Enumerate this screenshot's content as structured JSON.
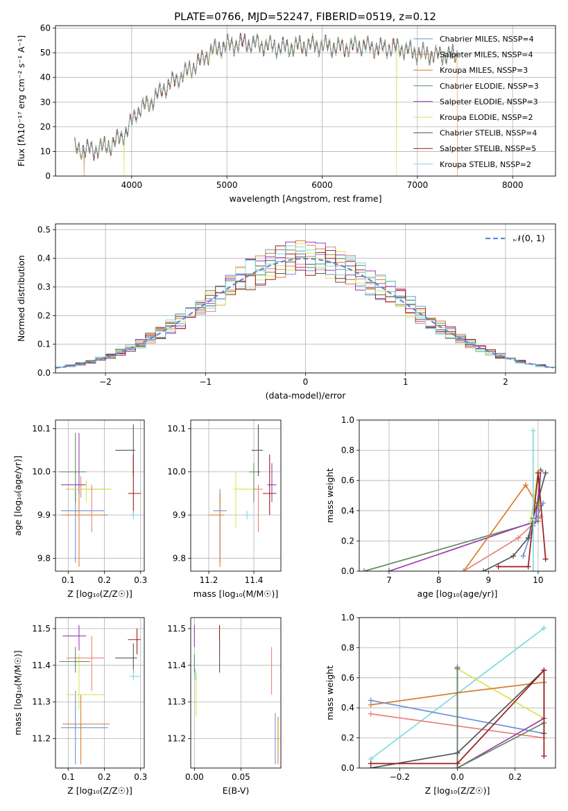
{
  "title": "PLATE=0766, MJD=52247, FIBERID=0519, z=0.12",
  "series_styles": [
    {
      "color": "#6a90d8"
    },
    {
      "color": "#e8827a"
    },
    {
      "color": "#d97d2b"
    },
    {
      "color": "#5f8a5a"
    },
    {
      "color": "#9a3bb0"
    },
    {
      "color": "#d6e650"
    },
    {
      "color": "#555555"
    },
    {
      "color": "#a01a1a"
    },
    {
      "color": "#7fd8dc"
    }
  ],
  "chart_data": [
    {
      "id": "spectrum",
      "type": "line",
      "xlabel": "wavelength [Angstrom, rest frame]",
      "ylabel": "Flux [fλ10⁻¹⁷ erg cm⁻² s⁻¹ A⁻¹]",
      "xlim": [
        3200,
        8450
      ],
      "ylim": [
        0,
        61
      ],
      "xticks": [
        "4000",
        "5000",
        "6000",
        "7000",
        "8000"
      ],
      "yticks": [
        "0",
        "10",
        "20",
        "30",
        "40",
        "50",
        "60"
      ],
      "legend_position": "top-right",
      "legend": [
        "Chabrier MILES, NSSP=4",
        "Salpeter MILES, NSSP=4",
        "Kroupa MILES, NSSP=3",
        "Chabrier ELODIE, NSSP=3",
        "Salpeter ELODIE, NSSP=3",
        "Kroupa ELODIE, NSSP=2",
        "Chabrier STELIB, NSSP=4",
        "Salpeter STELIB, NSSP=5",
        "Kroupa STELIB, NSSP=2"
      ],
      "continuum": {
        "x": [
          3400,
          3600,
          3800,
          3950,
          4050,
          4200,
          4350,
          4500,
          4700,
          4850,
          5000,
          5200,
          5400,
          5600,
          5800,
          6000,
          6200,
          6400,
          6600,
          6800,
          7000,
          7200,
          7400
        ],
        "y": [
          11,
          10.5,
          13,
          18,
          26,
          30,
          36,
          40,
          46,
          51,
          53,
          54,
          53,
          52,
          53,
          53,
          52,
          53,
          52,
          52,
          50,
          49,
          49
        ]
      },
      "drops": [
        {
          "x": 3500,
          "series": [
            2
          ]
        },
        {
          "x": 3920,
          "series": [
            5
          ]
        },
        {
          "x": 6780,
          "series": [
            5
          ]
        },
        {
          "x": 7420,
          "series": [
            2
          ]
        }
      ]
    },
    {
      "id": "residuals",
      "type": "histogram",
      "xlabel": "(data-model)/error",
      "ylabel": "Normed distribution",
      "xlim": [
        -2.5,
        2.5
      ],
      "ylim": [
        0,
        0.52
      ],
      "xticks": [
        "−2",
        "−1",
        "0",
        "1",
        "2"
      ],
      "yticks": [
        "0.0",
        "0.1",
        "0.2",
        "0.3",
        "0.4",
        "0.5"
      ],
      "legend_position": "top-right",
      "legend": "𝒩(0, 1)",
      "bin_width": 0.1
    },
    {
      "id": "age_vs_Z",
      "type": "errorbar",
      "xlabel": "Z [log₁₀(Z/Z☉)]",
      "ylabel": "age  [log₁₀(age/yr)]",
      "xlim": [
        0.065,
        0.31
      ],
      "ylim": [
        9.77,
        10.12
      ],
      "xticks": [
        "0.1",
        "0.2",
        "0.3"
      ],
      "yticks": [
        "9.8",
        "9.9",
        "10.0",
        "10.1"
      ],
      "points": [
        {
          "s": 0,
          "x": 0.12,
          "xe": [
            0.08,
            0.2
          ],
          "y": 9.91,
          "ye": [
            9.79,
            9.96
          ]
        },
        {
          "s": 1,
          "x": 0.135,
          "xe": [
            0.095,
            0.2
          ],
          "y": 9.96,
          "ye": [
            9.94,
            9.99
          ]
        },
        {
          "s": 2,
          "x": 0.13,
          "xe": [
            0.08,
            0.21
          ],
          "y": 9.9,
          "ye": [
            9.78,
            9.96
          ]
        },
        {
          "s": 3,
          "x": 0.12,
          "xe": [
            0.075,
            0.15
          ],
          "y": 10.0,
          "ye": [
            9.93,
            10.09
          ]
        },
        {
          "s": 4,
          "x": 0.13,
          "xe": [
            0.08,
            0.15
          ],
          "y": 9.97,
          "ye": [
            9.95,
            10.09
          ]
        },
        {
          "s": 5,
          "x": 0.15,
          "xe": [
            0.1,
            0.22
          ],
          "y": 9.96,
          "ye": [
            9.93,
            9.98
          ]
        },
        {
          "s": 6,
          "x": 0.28,
          "xe": [
            0.23,
            0.285
          ],
          "y": 10.05,
          "ye": [
            9.99,
            10.11
          ]
        },
        {
          "s": 7,
          "x": 0.28,
          "xe": [
            0.265,
            0.3
          ],
          "y": 9.95,
          "ye": [
            9.9,
            10.04
          ]
        },
        {
          "s": 8,
          "x": 0.28,
          "xe": [
            0.27,
            0.3
          ],
          "y": 9.9,
          "ye": [
            9.89,
            9.91
          ]
        },
        {
          "s": 1,
          "x": 0.165,
          "xe": [
            0.165,
            0.165
          ],
          "y": 9.93,
          "ye": [
            9.86,
            9.97
          ]
        }
      ]
    },
    {
      "id": "age_vs_mass",
      "type": "errorbar",
      "xlabel": "mass [log₁₀(M/M☉)]",
      "ylabel": "",
      "xlim": [
        11.12,
        11.52
      ],
      "ylim": [
        9.77,
        10.12
      ],
      "xticks": [
        "11.2",
        "11.4"
      ],
      "yticks": [
        "9.8",
        "9.9",
        "10.0",
        "10.1"
      ],
      "points": [
        {
          "s": 0,
          "x": 11.25,
          "xe": [
            11.22,
            11.28
          ],
          "y": 9.91,
          "ye": [
            9.79,
            9.96
          ]
        },
        {
          "s": 2,
          "x": 11.25,
          "xe": [
            11.2,
            11.27
          ],
          "y": 9.9,
          "ye": [
            9.78,
            9.95
          ]
        },
        {
          "s": 5,
          "x": 11.32,
          "xe": [
            11.31,
            11.4
          ],
          "y": 9.96,
          "ye": [
            9.87,
            10.0
          ]
        },
        {
          "s": 8,
          "x": 11.37,
          "xe": [
            11.35,
            11.39
          ],
          "y": 9.9,
          "ye": [
            9.89,
            9.91
          ]
        },
        {
          "s": 1,
          "x": 11.42,
          "xe": [
            11.4,
            11.44
          ],
          "y": 9.96,
          "ye": [
            9.86,
            9.97
          ]
        },
        {
          "s": 3,
          "x": 11.4,
          "xe": [
            11.38,
            11.43
          ],
          "y": 10.0,
          "ye": [
            9.93,
            10.02
          ]
        },
        {
          "s": 6,
          "x": 11.42,
          "xe": [
            11.39,
            11.44
          ],
          "y": 10.05,
          "ye": [
            9.99,
            10.11
          ]
        },
        {
          "s": 4,
          "x": 11.48,
          "xe": [
            11.46,
            11.5
          ],
          "y": 9.97,
          "ye": [
            9.93,
            10.02
          ]
        },
        {
          "s": 7,
          "x": 11.47,
          "xe": [
            11.44,
            11.5
          ],
          "y": 9.95,
          "ye": [
            9.9,
            10.04
          ]
        }
      ]
    },
    {
      "id": "weight_vs_age",
      "type": "line",
      "xlabel": "age  [log₁₀(age/yr)]",
      "ylabel": "mass weight",
      "xlim": [
        6.4,
        10.35
      ],
      "ylim": [
        0,
        1
      ],
      "xticks": [
        "7",
        "8",
        "9",
        "10"
      ],
      "yticks": [
        "0.0",
        "0.2",
        "0.4",
        "0.6",
        "0.8",
        "1.0"
      ],
      "series": [
        {
          "s": 3,
          "x": [
            6.5,
            10.0,
            10.05
          ],
          "y": [
            0.0,
            0.33,
            0.67
          ]
        },
        {
          "s": 4,
          "x": [
            7.0,
            9.95,
            10.05
          ],
          "y": [
            0.0,
            0.33,
            0.66
          ]
        },
        {
          "s": 2,
          "x": [
            8.5,
            9.75,
            10.0
          ],
          "y": [
            0.0,
            0.57,
            0.43
          ]
        },
        {
          "s": 1,
          "x": [
            8.5,
            9.6,
            10.05
          ],
          "y": [
            0.0,
            0.22,
            0.36
          ]
        },
        {
          "s": 0,
          "x": [
            9.7,
            9.9,
            10.1
          ],
          "y": [
            0.1,
            0.3,
            0.45
          ]
        },
        {
          "s": 5,
          "x": [
            9.85,
            10.0
          ],
          "y": [
            0.33,
            0.66
          ]
        },
        {
          "s": 6,
          "x": [
            8.9,
            9.5,
            9.8,
            9.9,
            10.15
          ],
          "y": [
            0.0,
            0.1,
            0.22,
            0.35,
            0.65
          ]
        },
        {
          "s": 7,
          "x": [
            9.2,
            9.8,
            10.0,
            10.15
          ],
          "y": [
            0.03,
            0.03,
            0.65,
            0.08
          ]
        },
        {
          "s": 8,
          "x": [
            9.9,
            9.9
          ],
          "y": [
            0.0,
            0.93
          ]
        }
      ]
    },
    {
      "id": "mass_vs_Z",
      "type": "errorbar",
      "xlabel": "Z [log₁₀(Z/Z☉)]",
      "ylabel": "mass [log₁₀(M/M☉)]",
      "xlim": [
        0.065,
        0.31
      ],
      "ylim": [
        11.12,
        11.53
      ],
      "xticks": [
        "0.1",
        "0.2",
        "0.3"
      ],
      "yticks": [
        "11.2",
        "11.3",
        "11.4",
        "11.5"
      ],
      "points": [
        {
          "s": 0,
          "x": 0.12,
          "xe": [
            0.08,
            0.21
          ],
          "y": 11.23,
          "ye": [
            11.13,
            11.33
          ]
        },
        {
          "s": 2,
          "x": 0.135,
          "xe": [
            0.085,
            0.215
          ],
          "y": 11.24,
          "ye": [
            11.13,
            11.32
          ]
        },
        {
          "s": 5,
          "x": 0.13,
          "xe": [
            0.095,
            0.2
          ],
          "y": 11.32,
          "ye": [
            11.28,
            11.43
          ]
        },
        {
          "s": 1,
          "x": 0.165,
          "xe": [
            0.095,
            0.2
          ],
          "y": 11.42,
          "ye": [
            11.33,
            11.48
          ]
        },
        {
          "s": 3,
          "x": 0.12,
          "xe": [
            0.075,
            0.16
          ],
          "y": 11.41,
          "ye": [
            11.38,
            11.45
          ]
        },
        {
          "s": 4,
          "x": 0.13,
          "xe": [
            0.085,
            0.15
          ],
          "y": 11.48,
          "ye": [
            11.44,
            11.51
          ]
        },
        {
          "s": 6,
          "x": 0.28,
          "xe": [
            0.23,
            0.29
          ],
          "y": 11.42,
          "ye": [
            11.38,
            11.46
          ]
        },
        {
          "s": 7,
          "x": 0.29,
          "xe": [
            0.265,
            0.3
          ],
          "y": 11.47,
          "ye": [
            11.43,
            11.5
          ]
        },
        {
          "s": 8,
          "x": 0.28,
          "xe": [
            0.27,
            0.3
          ],
          "y": 11.37,
          "ye": [
            11.36,
            11.39
          ]
        }
      ]
    },
    {
      "id": "mass_vs_ebv",
      "type": "errorbar",
      "xlabel": "E(B-V)",
      "ylabel": "",
      "xlim": [
        -0.004,
        0.093
      ],
      "ylim": [
        11.12,
        11.53
      ],
      "xticks": [
        "0.00",
        "0.05"
      ],
      "yticks": [
        "11.2",
        "11.3",
        "11.4",
        "11.5"
      ],
      "points": [
        {
          "s": 4,
          "x": 0.0,
          "xe": [
            0.0,
            0.0
          ],
          "y": 11.48,
          "ye": [
            11.45,
            11.51
          ]
        },
        {
          "s": 3,
          "x": 0.0,
          "xe": [
            0.0,
            0.0
          ],
          "y": 11.41,
          "ye": [
            11.38,
            11.43
          ]
        },
        {
          "s": 8,
          "x": 0.001,
          "xe": [
            0.001,
            0.001
          ],
          "y": 11.37,
          "ye": [
            11.36,
            11.39
          ]
        },
        {
          "s": 5,
          "x": 0.002,
          "xe": [
            0.002,
            0.002
          ],
          "y": 11.32,
          "ye": [
            11.26,
            11.38
          ]
        },
        {
          "s": 7,
          "x": 0.027,
          "xe": [
            0.027,
            0.027
          ],
          "y": 11.47,
          "ye": [
            11.43,
            11.51
          ]
        },
        {
          "s": 6,
          "x": 0.027,
          "xe": [
            0.027,
            0.027
          ],
          "y": 11.42,
          "ye": [
            11.38,
            11.46
          ]
        },
        {
          "s": 1,
          "x": 0.083,
          "xe": [
            0.083,
            0.083
          ],
          "y": 11.42,
          "ye": [
            11.32,
            11.45
          ]
        },
        {
          "s": 0,
          "x": 0.087,
          "xe": [
            0.087,
            0.087
          ],
          "y": 11.23,
          "ye": [
            11.13,
            11.27
          ]
        },
        {
          "s": 2,
          "x": 0.09,
          "xe": [
            0.09,
            0.09
          ],
          "y": 11.24,
          "ye": [
            11.13,
            11.26
          ]
        }
      ]
    },
    {
      "id": "weight_vs_Z",
      "type": "line",
      "xlabel": "Z [log₁₀(Z/Z☉)]",
      "ylabel": "mass weight",
      "xlim": [
        -0.34,
        0.34
      ],
      "ylim": [
        0,
        1
      ],
      "xticks": [
        "−0.2",
        "0.0",
        "0.2"
      ],
      "yticks": [
        "0.0",
        "0.2",
        "0.4",
        "0.6",
        "0.8",
        "1.0"
      ],
      "series": [
        {
          "s": 8,
          "x": [
            -0.3,
            0.3
          ],
          "y": [
            0.06,
            0.93
          ]
        },
        {
          "s": 5,
          "x": [
            0.0,
            0.3
          ],
          "y": [
            0.66,
            0.33
          ]
        },
        {
          "s": 2,
          "x": [
            -0.3,
            0.0,
            0.3
          ],
          "y": [
            0.42,
            0.5,
            0.57
          ]
        },
        {
          "s": 0,
          "x": [
            -0.3,
            0.3
          ],
          "y": [
            0.45,
            0.23
          ]
        },
        {
          "s": 1,
          "x": [
            -0.3,
            0.3
          ],
          "y": [
            0.36,
            0.2
          ]
        },
        {
          "s": 4,
          "x": [
            0.0,
            0.0,
            0.3
          ],
          "y": [
            0.66,
            0.0,
            0.33
          ]
        },
        {
          "s": 3,
          "x": [
            0.0,
            0.0,
            0.3
          ],
          "y": [
            0.67,
            0.0,
            0.3
          ]
        },
        {
          "s": 6,
          "x": [
            -0.3,
            0.0,
            0.3,
            0.3
          ],
          "y": [
            0.0,
            0.1,
            0.65,
            0.23
          ]
        },
        {
          "s": 7,
          "x": [
            -0.3,
            0.0,
            0.3,
            0.3
          ],
          "y": [
            0.03,
            0.03,
            0.65,
            0.08
          ]
        }
      ]
    }
  ]
}
